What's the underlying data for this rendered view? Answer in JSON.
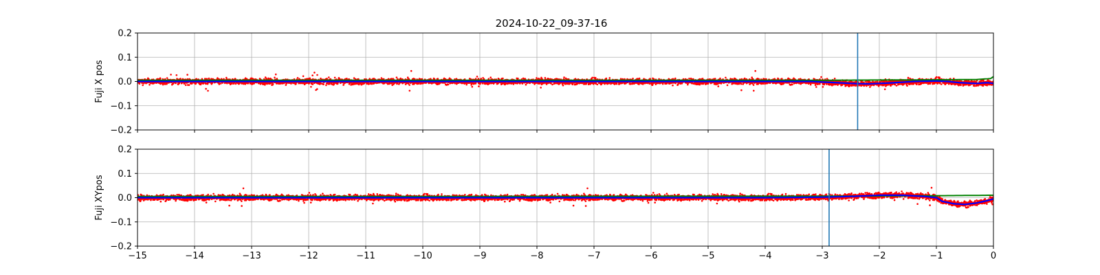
{
  "title": "2024-10-22_09-37-16",
  "colors": {
    "scatter": "#ff0000",
    "smooth": "#0000ff",
    "reference": "#008000",
    "marker": "#1f77b4",
    "grid": "#b0b0b0"
  },
  "chart_data": [
    {
      "type": "scatter",
      "ylabel": "Fuji X pos",
      "xlim": [
        -15,
        0
      ],
      "ylim": [
        -0.2,
        0.2
      ],
      "xticks": [
        -15,
        -14,
        -13,
        -12,
        -11,
        -10,
        -9,
        -8,
        -7,
        -6,
        -5,
        -4,
        -3,
        -2,
        -1,
        0
      ],
      "yticks": [
        -0.2,
        -0.1,
        0.0,
        0.1,
        0.2
      ],
      "ytick_labels": [
        "−0.2",
        "−0.1",
        "0.0",
        "0.1",
        "0.2"
      ],
      "show_xtick_labels": false,
      "grid": true,
      "vline_x": -2.38,
      "noise": {
        "spread": 0.02,
        "outlier_max": 0.045
      },
      "smooth_line": [
        [
          -15,
          0.0
        ],
        [
          -14,
          0.0
        ],
        [
          -10,
          0.0
        ],
        [
          -6,
          0.0
        ],
        [
          -4,
          0.0
        ],
        [
          -3.2,
          0.0
        ],
        [
          -2.5,
          -0.008
        ],
        [
          -2.2,
          -0.01
        ],
        [
          -1.8,
          -0.006
        ],
        [
          -1.4,
          0.0
        ],
        [
          -1.0,
          0.002
        ],
        [
          -0.8,
          0.0
        ],
        [
          -0.6,
          -0.005
        ],
        [
          -0.3,
          -0.008
        ],
        [
          -0.1,
          -0.005
        ],
        [
          0,
          -0.008
        ]
      ],
      "reference_line": [
        [
          -15,
          0.005
        ],
        [
          -10,
          0.005
        ],
        [
          -5,
          0.005
        ],
        [
          -3,
          0.005
        ],
        [
          -2,
          0.006
        ],
        [
          -1,
          0.007
        ],
        [
          -0.3,
          0.008
        ],
        [
          -0.05,
          0.012
        ],
        [
          0,
          0.02
        ]
      ]
    },
    {
      "type": "scatter",
      "ylabel": "Fuji XYpos",
      "xlim": [
        -15,
        0
      ],
      "ylim": [
        -0.2,
        0.2
      ],
      "xticks": [
        -15,
        -14,
        -13,
        -12,
        -11,
        -10,
        -9,
        -8,
        -7,
        -6,
        -5,
        -4,
        -3,
        -2,
        -1,
        0
      ],
      "xtick_labels": [
        "−15",
        "−14",
        "−13",
        "−12",
        "−11",
        "−10",
        "−9",
        "−8",
        "−7",
        "−6",
        "−5",
        "−4",
        "−3",
        "−2",
        "−1",
        "0"
      ],
      "yticks": [
        -0.2,
        -0.1,
        0.0,
        0.1,
        0.2
      ],
      "ytick_labels": [
        "−0.2",
        "−0.1",
        "0.0",
        "0.1",
        "0.2"
      ],
      "show_xtick_labels": true,
      "grid": true,
      "vline_x": -2.88,
      "noise": {
        "spread": 0.02,
        "outlier_max": 0.04
      },
      "smooth_line": [
        [
          -15,
          0.0
        ],
        [
          -12,
          0.0
        ],
        [
          -8,
          0.0
        ],
        [
          -4,
          0.0
        ],
        [
          -3,
          0.002
        ],
        [
          -2.5,
          0.005
        ],
        [
          -2.0,
          0.01
        ],
        [
          -1.6,
          0.01
        ],
        [
          -1.2,
          0.005
        ],
        [
          -1.0,
          0.0
        ],
        [
          -0.9,
          -0.015
        ],
        [
          -0.7,
          -0.025
        ],
        [
          -0.5,
          -0.028
        ],
        [
          -0.3,
          -0.022
        ],
        [
          -0.1,
          -0.012
        ],
        [
          0,
          -0.005
        ]
      ],
      "reference_line": [
        [
          -15,
          0.005
        ],
        [
          -10,
          0.005
        ],
        [
          -5,
          0.006
        ],
        [
          -3,
          0.006
        ],
        [
          -2,
          0.007
        ],
        [
          -1,
          0.008
        ],
        [
          0,
          0.01
        ]
      ]
    }
  ]
}
